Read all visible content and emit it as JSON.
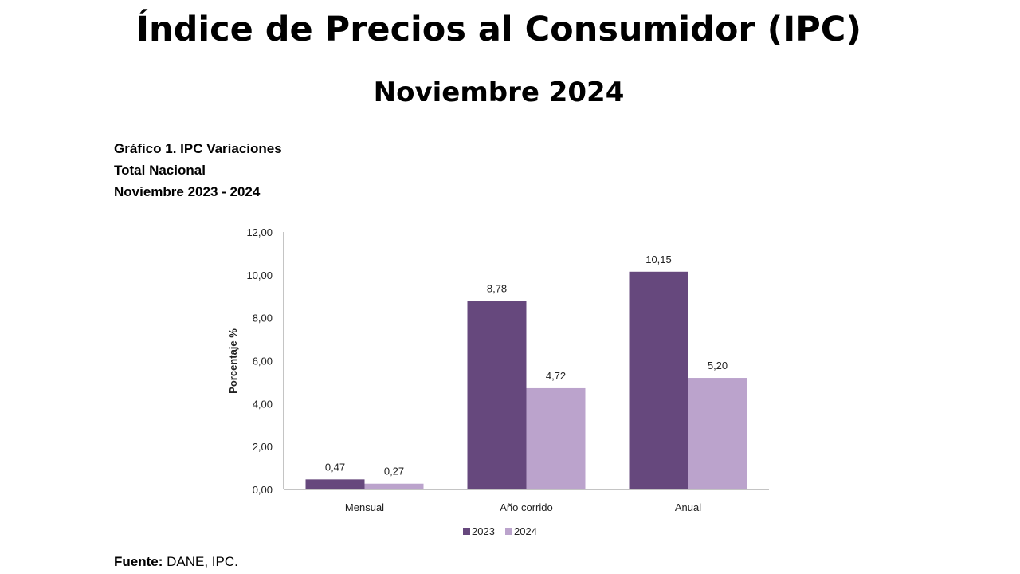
{
  "title": "Índice de Precios al Consumidor (IPC)",
  "subtitle": "Noviembre 2024",
  "caption": [
    "Gráfico 1. IPC Variaciones",
    "Total Nacional",
    "Noviembre 2023 - 2024"
  ],
  "source_label": "Fuente:",
  "source_text": " DANE, IPC.",
  "chart_data": {
    "type": "bar",
    "categories": [
      "Mensual",
      "Año corrido",
      "Anual"
    ],
    "series": [
      {
        "name": "2023",
        "values": [
          0.47,
          8.78,
          10.15
        ],
        "labels": [
          "0,47",
          "8,78",
          "10,15"
        ],
        "color": "#66487d"
      },
      {
        "name": "2024",
        "values": [
          0.27,
          4.72,
          5.2
        ],
        "labels": [
          "0,27",
          "4,72",
          "5,20"
        ],
        "color": "#bba3cc"
      }
    ],
    "ylabel": "Porcentaje %",
    "xlabel": "",
    "ylim": [
      0,
      12
    ],
    "yticks": [
      "0,00",
      "2,00",
      "4,00",
      "6,00",
      "8,00",
      "10,00",
      "12,00"
    ],
    "grid": false,
    "legend": "bottom"
  }
}
